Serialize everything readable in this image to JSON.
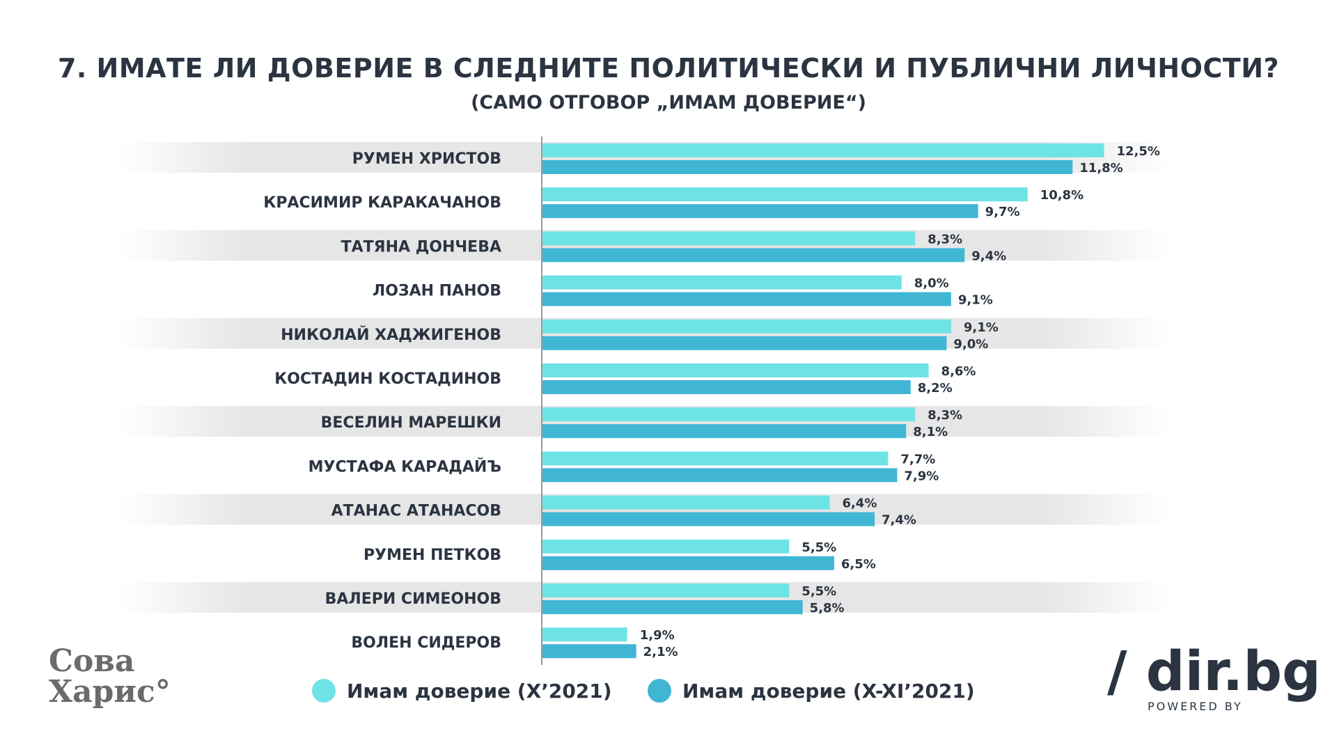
{
  "colors": {
    "series1": "#6ee3e6",
    "series2": "#40b6d4",
    "stripe": "#e6e6e6",
    "text": "#2b3440"
  },
  "logos": {
    "left": "Сова Харис",
    "right": "/ dir.bg",
    "right_sub": "POWERED BY"
  },
  "chart_data": {
    "type": "bar",
    "orientation": "horizontal",
    "title": "7. ИМАТЕ ЛИ ДОВЕРИЕ В СЛЕДНИТЕ ПОЛИТИЧЕСКИ И ПУБЛИЧНИ ЛИЧНОСТИ?",
    "subtitle": "(САМО ОТГОВОР „ИМАМ ДОВЕРИЕ“)",
    "categories": [
      "РУМЕН ХРИСТОВ",
      "КРАСИМИР КАРАКАЧАНОВ",
      "ТАТЯНА ДОНЧЕВА",
      "ЛОЗАН ПАНОВ",
      "НИКОЛАЙ ХАДЖИГЕНОВ",
      "КОСТАДИН КОСТАДИНОВ",
      "ВЕСЕЛИН МАРЕШКИ",
      "МУСТАФА КАРАДАЙЪ",
      "АТАНАС АТАНАСОВ",
      "РУМЕН ПЕТКОВ",
      "ВАЛЕРИ СИМЕОНОВ",
      "ВОЛЕН СИДЕРОВ"
    ],
    "series": [
      {
        "name": "Имам доверие (X’2021)",
        "values": [
          12.5,
          10.8,
          8.3,
          8.0,
          9.1,
          8.6,
          8.3,
          7.7,
          6.4,
          5.5,
          5.5,
          1.9
        ],
        "labels": [
          "12,5%",
          "10,8%",
          "8,3%",
          "8,0%",
          "9,1%",
          "8,6%",
          "8,3%",
          "7,7%",
          "6,4%",
          "5,5%",
          "5,5%",
          "1,9%"
        ]
      },
      {
        "name": "Имам доверие (X-XI’2021)",
        "values": [
          11.8,
          9.7,
          9.4,
          9.1,
          9.0,
          8.2,
          8.1,
          7.9,
          7.4,
          6.5,
          5.8,
          2.1
        ],
        "labels": [
          "11,8%",
          "9,7%",
          "9,4%",
          "9,1%",
          "9,0%",
          "8,2%",
          "8,1%",
          "7,9%",
          "7,4%",
          "6,5%",
          "5,8%",
          "2,1%"
        ]
      }
    ],
    "unit": "%",
    "legend": "bottom",
    "grid": false
  }
}
